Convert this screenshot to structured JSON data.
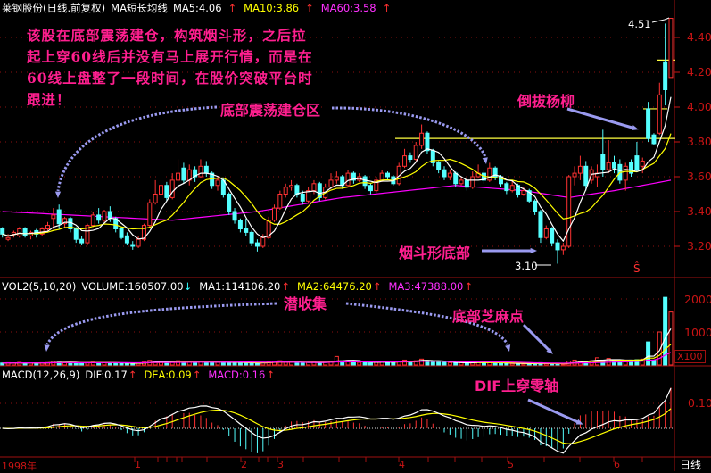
{
  "header": {
    "title": "莱钢股份(日线.前复权)",
    "indicator": "MA短长均线",
    "ma5": "MA5:4.06",
    "ma10": "MA10:3.86",
    "ma60": "MA60:3.58",
    "up_arrow": "↑",
    "down_arrow": "↓"
  },
  "volume_header": {
    "name": "VOL2(5,10,20)",
    "volume": "VOLUME:160507.00",
    "ma1": "MA1:114106.20",
    "ma2": "MA2:64476.20",
    "ma3": "MA3:47388.00"
  },
  "macd_header": {
    "name": "MACD(12,26,9)",
    "dif": "DIF:0.17",
    "dea": "DEA:0.09",
    "macd": "MACD:0.16"
  },
  "annotations": {
    "note_lines": [
      "该股在底部震荡建仓，构筑烟斗形，之后拉",
      "起上穿60线后并没有马上展开行情，而是在",
      "60线上盘整了一段时间，在股价突破平台时",
      "跟进！"
    ],
    "accumulation_zone": "底部震荡建仓区",
    "pipe_bottom": "烟斗形底部",
    "uproot_willow": "倒拔杨柳",
    "latent_collection": "潜收集",
    "sesame_dots": "底部芝麻点",
    "dif_cross": "DIF上穿零轴",
    "high_label": "4.51",
    "low_label": "3.10",
    "s_marker": "Ŝ"
  },
  "axes": {
    "price_ticks": [
      "4.40",
      "4.20",
      "4.00",
      "3.80",
      "3.60",
      "3.40",
      "3.20"
    ],
    "volume_ticks": [
      "2000",
      "1000"
    ],
    "volume_unit": "X100",
    "macd_ticks": [
      "0.10"
    ],
    "date_labels": [
      "1998年",
      "1",
      "2",
      "3",
      "4",
      "5",
      "6"
    ],
    "period": "日线"
  },
  "colors": {
    "up": "#ff3232",
    "down": "#54ffff",
    "ma5": "#ffffff",
    "ma10": "#ffff00",
    "ma60": "#ff00ff",
    "grid": "#8c1010",
    "annotation": "#ff1f8f",
    "arrow": "#9a9af0"
  },
  "chart_data": {
    "type": "candlestick",
    "price_range": [
      3.1,
      4.51
    ],
    "resistance_line": 3.82,
    "ohlc": [
      [
        3.3,
        3.31,
        3.25,
        3.27
      ],
      [
        3.24,
        3.27,
        3.23,
        3.25
      ],
      [
        3.27,
        3.29,
        3.25,
        3.28
      ],
      [
        3.26,
        3.31,
        3.25,
        3.3
      ],
      [
        3.3,
        3.31,
        3.25,
        3.26
      ],
      [
        3.26,
        3.29,
        3.24,
        3.28
      ],
      [
        3.29,
        3.3,
        3.25,
        3.27
      ],
      [
        3.27,
        3.31,
        3.26,
        3.3
      ],
      [
        3.3,
        3.34,
        3.29,
        3.32
      ],
      [
        3.36,
        3.42,
        3.3,
        3.38
      ],
      [
        3.41,
        3.44,
        3.3,
        3.33
      ],
      [
        3.33,
        3.37,
        3.31,
        3.36
      ],
      [
        3.36,
        3.37,
        3.28,
        3.3
      ],
      [
        3.3,
        3.31,
        3.22,
        3.24
      ],
      [
        3.24,
        3.26,
        3.21,
        3.22
      ],
      [
        3.22,
        3.33,
        3.21,
        3.32
      ],
      [
        3.32,
        3.4,
        3.31,
        3.38
      ],
      [
        3.38,
        3.42,
        3.33,
        3.35
      ],
      [
        3.35,
        3.41,
        3.34,
        3.4
      ],
      [
        3.4,
        3.43,
        3.34,
        3.36
      ],
      [
        3.36,
        3.37,
        3.28,
        3.3
      ],
      [
        3.3,
        3.31,
        3.24,
        3.25
      ],
      [
        3.26,
        3.28,
        3.21,
        3.22
      ],
      [
        3.21,
        3.23,
        3.18,
        3.2
      ],
      [
        3.2,
        3.26,
        3.19,
        3.24
      ],
      [
        3.24,
        3.33,
        3.23,
        3.32
      ],
      [
        3.32,
        3.47,
        3.31,
        3.45
      ],
      [
        3.45,
        3.58,
        3.44,
        3.5
      ],
      [
        3.5,
        3.6,
        3.48,
        3.55
      ],
      [
        3.55,
        3.57,
        3.46,
        3.48
      ],
      [
        3.48,
        3.62,
        3.47,
        3.58
      ],
      [
        3.58,
        3.7,
        3.57,
        3.62
      ],
      [
        3.65,
        3.68,
        3.56,
        3.58
      ],
      [
        3.58,
        3.67,
        3.55,
        3.64
      ],
      [
        3.64,
        3.66,
        3.57,
        3.6
      ],
      [
        3.6,
        3.7,
        3.59,
        3.66
      ],
      [
        3.66,
        3.69,
        3.6,
        3.62
      ],
      [
        3.62,
        3.63,
        3.53,
        3.55
      ],
      [
        3.55,
        3.6,
        3.52,
        3.58
      ],
      [
        3.58,
        3.59,
        3.48,
        3.5
      ],
      [
        3.5,
        3.51,
        3.38,
        3.4
      ],
      [
        3.4,
        3.42,
        3.33,
        3.35
      ],
      [
        3.35,
        3.36,
        3.28,
        3.3
      ],
      [
        3.3,
        3.36,
        3.26,
        3.28
      ],
      [
        3.28,
        3.29,
        3.2,
        3.22
      ],
      [
        3.22,
        3.24,
        3.17,
        3.2
      ],
      [
        3.2,
        3.27,
        3.19,
        3.25
      ],
      [
        3.25,
        3.37,
        3.24,
        3.35
      ],
      [
        3.35,
        3.44,
        3.34,
        3.42
      ],
      [
        3.42,
        3.52,
        3.41,
        3.5
      ],
      [
        3.5,
        3.56,
        3.48,
        3.54
      ],
      [
        3.54,
        3.58,
        3.52,
        3.55
      ],
      [
        3.55,
        3.56,
        3.48,
        3.5
      ],
      [
        3.5,
        3.52,
        3.44,
        3.46
      ],
      [
        3.46,
        3.54,
        3.45,
        3.52
      ],
      [
        3.52,
        3.58,
        3.5,
        3.56
      ],
      [
        3.56,
        3.57,
        3.46,
        3.48
      ],
      [
        3.48,
        3.56,
        3.47,
        3.54
      ],
      [
        3.54,
        3.62,
        3.53,
        3.58
      ],
      [
        3.58,
        3.63,
        3.56,
        3.6
      ],
      [
        3.6,
        3.61,
        3.53,
        3.55
      ],
      [
        3.55,
        3.64,
        3.54,
        3.62
      ],
      [
        3.62,
        3.63,
        3.56,
        3.58
      ],
      [
        3.58,
        3.62,
        3.57,
        3.6
      ],
      [
        3.6,
        3.61,
        3.53,
        3.55
      ],
      [
        3.55,
        3.56,
        3.5,
        3.52
      ],
      [
        3.52,
        3.6,
        3.51,
        3.58
      ],
      [
        3.58,
        3.64,
        3.57,
        3.62
      ],
      [
        3.62,
        3.63,
        3.58,
        3.6
      ],
      [
        3.6,
        3.61,
        3.55,
        3.56
      ],
      [
        3.56,
        3.68,
        3.55,
        3.66
      ],
      [
        3.66,
        3.76,
        3.65,
        3.72
      ],
      [
        3.72,
        3.74,
        3.68,
        3.7
      ],
      [
        3.7,
        3.8,
        3.69,
        3.78
      ],
      [
        3.78,
        3.9,
        3.76,
        3.85
      ],
      [
        3.85,
        3.86,
        3.73,
        3.75
      ],
      [
        3.75,
        3.76,
        3.66,
        3.68
      ],
      [
        3.68,
        3.69,
        3.62,
        3.64
      ],
      [
        3.64,
        3.66,
        3.58,
        3.6
      ],
      [
        3.6,
        3.64,
        3.58,
        3.62
      ],
      [
        3.62,
        3.63,
        3.54,
        3.56
      ],
      [
        3.56,
        3.6,
        3.55,
        3.58
      ],
      [
        3.58,
        3.59,
        3.52,
        3.54
      ],
      [
        3.54,
        3.63,
        3.53,
        3.6
      ],
      [
        3.6,
        3.67,
        3.59,
        3.62
      ],
      [
        3.62,
        3.64,
        3.56,
        3.58
      ],
      [
        3.58,
        3.68,
        3.57,
        3.65
      ],
      [
        3.65,
        3.66,
        3.58,
        3.6
      ],
      [
        3.6,
        3.61,
        3.54,
        3.56
      ],
      [
        3.56,
        3.57,
        3.5,
        3.52
      ],
      [
        3.52,
        3.58,
        3.51,
        3.55
      ],
      [
        3.55,
        3.56,
        3.48,
        3.5
      ],
      [
        3.5,
        3.54,
        3.49,
        3.52
      ],
      [
        3.52,
        3.53,
        3.45,
        3.46
      ],
      [
        3.46,
        3.47,
        3.38,
        3.4
      ],
      [
        3.4,
        3.41,
        3.22,
        3.25
      ],
      [
        3.25,
        3.32,
        3.24,
        3.3
      ],
      [
        3.3,
        3.31,
        3.2,
        3.22
      ],
      [
        3.22,
        3.24,
        3.1,
        3.18
      ],
      [
        3.18,
        3.22,
        3.15,
        3.2
      ],
      [
        3.2,
        3.61,
        3.19,
        3.6
      ],
      [
        3.6,
        3.66,
        3.55,
        3.62
      ],
      [
        3.62,
        3.72,
        3.58,
        3.66
      ],
      [
        3.66,
        3.69,
        3.52,
        3.55
      ],
      [
        3.58,
        3.66,
        3.56,
        3.64
      ],
      [
        3.6,
        3.67,
        3.54,
        3.62
      ],
      [
        3.73,
        3.87,
        3.6,
        3.64
      ],
      [
        3.64,
        3.81,
        3.62,
        3.68
      ],
      [
        3.68,
        3.72,
        3.62,
        3.65
      ],
      [
        3.67,
        3.7,
        3.56,
        3.58
      ],
      [
        3.58,
        3.68,
        3.52,
        3.66
      ],
      [
        3.68,
        3.7,
        3.6,
        3.62
      ],
      [
        3.72,
        3.8,
        3.63,
        3.64
      ],
      [
        3.66,
        3.71,
        3.62,
        3.69
      ],
      [
        3.99,
        4.03,
        3.8,
        3.82
      ],
      [
        3.84,
        3.85,
        3.78,
        3.79
      ],
      [
        3.85,
        4.14,
        3.84,
        4.07
      ],
      [
        4.26,
        4.48,
        4.01,
        4.1
      ],
      [
        4.17,
        4.51,
        4.17,
        4.51
      ]
    ],
    "volume_x100": [
      60,
      70,
      55,
      80,
      60,
      65,
      50,
      70,
      75,
      120,
      90,
      70,
      80,
      60,
      55,
      75,
      90,
      70,
      80,
      65,
      60,
      55,
      50,
      45,
      60,
      90,
      140,
      120,
      100,
      80,
      110,
      130,
      90,
      100,
      80,
      120,
      90,
      70,
      80,
      75,
      90,
      80,
      70,
      60,
      55,
      60,
      80,
      100,
      120,
      130,
      90,
      80,
      70,
      60,
      80,
      90,
      70,
      80,
      120,
      260,
      100,
      140,
      90,
      80,
      70,
      60,
      120,
      100,
      90,
      70,
      110,
      150,
      120,
      130,
      180,
      140,
      100,
      90,
      80,
      70,
      60,
      70,
      60,
      80,
      90,
      70,
      80,
      60,
      55,
      50,
      45,
      40,
      35,
      40,
      50,
      70,
      40,
      30,
      35,
      30,
      120,
      150,
      110,
      120,
      130,
      220,
      150,
      200,
      120,
      130,
      140,
      150,
      160,
      180,
      700,
      150,
      1000,
      2050,
      1605
    ],
    "ma60_anchors": [
      [
        0,
        3.4
      ],
      [
        24,
        3.36
      ],
      [
        30,
        3.35
      ],
      [
        45,
        3.4
      ],
      [
        60,
        3.48
      ],
      [
        80,
        3.55
      ],
      [
        92,
        3.52
      ],
      [
        100,
        3.48
      ],
      [
        108,
        3.52
      ],
      [
        118,
        3.58
      ]
    ]
  }
}
